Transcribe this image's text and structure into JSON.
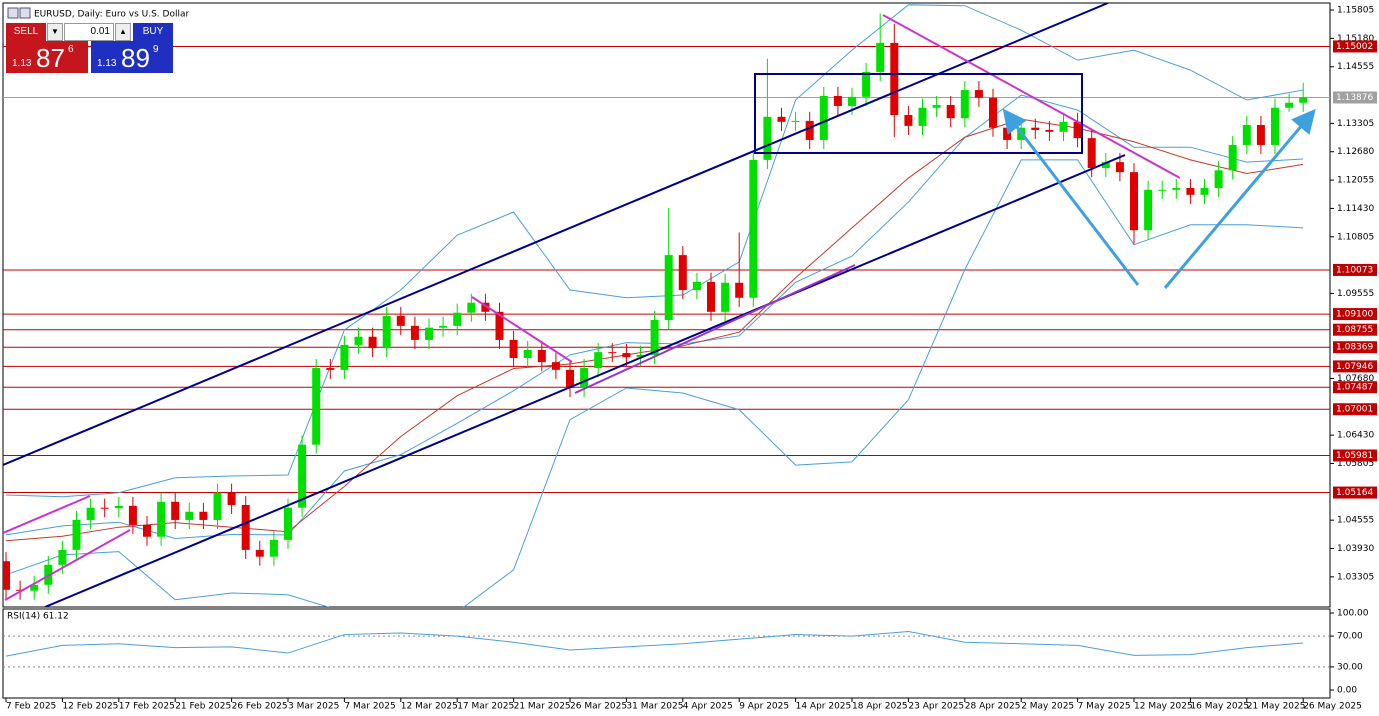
{
  "header": {
    "title": "EURUSD, Daily: Euro vs U.S. Dollar"
  },
  "trade_panel": {
    "sell": "SELL",
    "buy": "BUY",
    "lot": "0.01",
    "bid": {
      "big": "1.13",
      "main": "87",
      "small": "6"
    },
    "ask": {
      "big": "1.13",
      "main": "89",
      "small": "9"
    }
  },
  "chart_data": {
    "type": "candlestick",
    "up_color": "#00e000",
    "down_color": "#e00000",
    "categories": [
      "7 Feb 2025",
      null,
      null,
      null,
      "12 Feb 2025",
      null,
      null,
      null,
      "17 Feb 2025",
      null,
      null,
      null,
      "21 Feb 2025",
      null,
      null,
      null,
      "26 Feb 2025",
      null,
      null,
      null,
      "3 Mar 2025",
      null,
      null,
      null,
      "7 Mar 2025",
      null,
      null,
      null,
      "12 Mar 2025",
      null,
      null,
      null,
      "17 Mar 2025",
      null,
      null,
      null,
      "21 Mar 2025",
      null,
      null,
      null,
      "26 Mar 2025",
      null,
      null,
      null,
      "31 Mar 2025",
      null,
      null,
      null,
      "4 Apr 2025",
      null,
      null,
      null,
      "9 Apr 2025",
      null,
      null,
      null,
      "14 Apr 2025",
      null,
      null,
      null,
      "18 Apr 2025",
      null,
      null,
      null,
      "23 Apr 2025",
      null,
      null,
      null,
      "28 Apr 2025",
      null,
      null,
      null,
      "2 May 2025",
      null,
      null,
      null,
      "7 May 2025",
      null,
      null,
      null,
      "12 May 2025",
      null,
      null,
      null,
      "16 May 2025",
      null,
      null,
      null,
      "21 May 2025",
      null,
      null,
      null,
      "26 May 2025"
    ],
    "open": [
      1.0365,
      1.0302,
      1.03,
      1.0313,
      1.0357,
      1.039,
      1.0456,
      1.0483,
      1.0482,
      1.0487,
      1.0445,
      1.0419,
      1.0496,
      1.0456,
      1.0474,
      1.0456,
      1.0516,
      1.0489,
      1.039,
      1.0375,
      1.0412,
      1.0483,
      1.0622,
      1.0791,
      1.0787,
      1.0842,
      1.086,
      1.0835,
      1.0906,
      1.0884,
      1.0853,
      1.088,
      1.0884,
      1.0913,
      1.0935,
      1.0915,
      1.0853,
      1.0813,
      1.0831,
      1.0804,
      1.0787,
      1.0747,
      1.0791,
      1.0826,
      1.0824,
      1.0815,
      1.082,
      1.0897,
      1.104,
      1.0963,
      1.0981,
      1.0915,
      1.0979,
      1.0946,
      1.125,
      1.1345,
      1.1334,
      1.1336,
      1.1294,
      1.1391,
      1.1369,
      1.1389,
      1.1444,
      1.1508,
      1.1349,
      1.1325,
      1.1365,
      1.1371,
      1.1342,
      1.1404,
      1.1387,
      1.1321,
      1.1294,
      1.1321,
      1.1316,
      1.1312,
      1.1334,
      1.1298,
      1.1232,
      1.1245,
      1.1223,
      1.1095,
      1.1184,
      1.1184,
      1.1188,
      1.1173,
      1.1188,
      1.1227,
      1.1283,
      1.1327,
      1.1283,
      1.1365,
      1.1376
    ],
    "high": [
      1.0385,
      1.0322,
      1.0333,
      1.0377,
      1.041,
      1.0476,
      1.0503,
      1.0503,
      1.0507,
      1.0507,
      1.0465,
      1.0516,
      1.0516,
      1.0494,
      1.0494,
      1.0536,
      1.0536,
      1.0509,
      1.041,
      1.0432,
      1.0503,
      1.0642,
      1.0811,
      1.0811,
      1.0862,
      1.088,
      1.088,
      1.0926,
      1.0926,
      1.0904,
      1.09,
      1.0904,
      1.0933,
      1.0955,
      1.0955,
      1.0935,
      1.0873,
      1.0851,
      1.0851,
      1.0824,
      1.0807,
      1.0811,
      1.0846,
      1.0846,
      1.0844,
      1.084,
      1.0917,
      1.1144,
      1.106,
      1.1001,
      1.1001,
      1.0999,
      1.109,
      1.127,
      1.1473,
      1.1365,
      1.1356,
      1.1356,
      1.1411,
      1.1411,
      1.1409,
      1.1464,
      1.1573,
      1.155,
      1.1369,
      1.1385,
      1.1391,
      1.1391,
      1.1424,
      1.1424,
      1.1407,
      1.1341,
      1.1341,
      1.1341,
      1.1336,
      1.1354,
      1.1354,
      1.1318,
      1.1265,
      1.1265,
      1.1243,
      1.1204,
      1.1204,
      1.1208,
      1.1208,
      1.1208,
      1.1247,
      1.1303,
      1.1347,
      1.1347,
      1.1385,
      1.1396,
      1.142
    ],
    "low": [
      1.0282,
      1.028,
      1.028,
      1.0293,
      1.0337,
      1.037,
      1.0436,
      1.0462,
      1.0462,
      1.0425,
      1.0399,
      1.0399,
      1.0436,
      1.0436,
      1.0436,
      1.0436,
      1.0469,
      1.037,
      1.0355,
      1.0355,
      1.0392,
      1.0463,
      1.0602,
      1.0767,
      1.0767,
      1.0822,
      1.0815,
      1.0815,
      1.0864,
      1.0833,
      1.0833,
      1.086,
      1.0864,
      1.0893,
      1.0895,
      1.0833,
      1.0793,
      1.0793,
      1.0784,
      1.0767,
      1.0727,
      1.0727,
      1.0771,
      1.0804,
      1.0795,
      1.0795,
      1.08,
      1.0877,
      1.0943,
      1.0943,
      1.0895,
      1.0895,
      1.0926,
      1.0926,
      1.123,
      1.1314,
      1.1314,
      1.1274,
      1.1274,
      1.1349,
      1.1349,
      1.1369,
      1.1424,
      1.13,
      1.1305,
      1.1305,
      1.1345,
      1.1322,
      1.1322,
      1.1367,
      1.1301,
      1.1274,
      1.1274,
      1.1296,
      1.1292,
      1.1292,
      1.1278,
      1.1212,
      1.1212,
      1.1203,
      1.1065,
      1.1075,
      1.1164,
      1.1164,
      1.1153,
      1.1153,
      1.1168,
      1.1207,
      1.1263,
      1.1263,
      1.1263,
      1.1356,
      1.1356
    ],
    "close": [
      1.0302,
      1.03,
      1.0313,
      1.0357,
      1.039,
      1.0456,
      1.0483,
      1.0482,
      1.0487,
      1.0445,
      1.0419,
      1.0496,
      1.0456,
      1.0474,
      1.0456,
      1.0516,
      1.0489,
      1.039,
      1.0375,
      1.0412,
      1.0483,
      1.0622,
      1.0791,
      1.0787,
      1.0842,
      1.086,
      1.0835,
      1.0906,
      1.0884,
      1.0853,
      1.088,
      1.0884,
      1.0913,
      1.0935,
      1.0915,
      1.0853,
      1.0813,
      1.0831,
      1.0804,
      1.0787,
      1.0747,
      1.0791,
      1.0826,
      1.0824,
      1.0815,
      1.082,
      1.0897,
      1.104,
      1.0963,
      1.0981,
      1.0915,
      1.0979,
      1.0946,
      1.125,
      1.1345,
      1.1334,
      1.1336,
      1.1294,
      1.1391,
      1.1369,
      1.1389,
      1.1444,
      1.1508,
      1.1349,
      1.1325,
      1.1365,
      1.1371,
      1.1342,
      1.1404,
      1.1387,
      1.1321,
      1.1294,
      1.1321,
      1.1316,
      1.1312,
      1.1334,
      1.1298,
      1.1232,
      1.1245,
      1.1223,
      1.1095,
      1.1184,
      1.1184,
      1.1188,
      1.1173,
      1.1188,
      1.1227,
      1.1283,
      1.1327,
      1.1283,
      1.1365,
      1.1376,
      1.1388
    ],
    "ylim": [
      1.0264,
      1.1596
    ],
    "yticks": [
      1.15805,
      {
        "value": 1.1518,
        "label": "1.15180"
      },
      1.14555,
      1.13305,
      {
        "value": 1.1268,
        "label": "1.12680"
      },
      1.12055,
      {
        "value": 1.1143,
        "label": "1.11430"
      },
      1.10805,
      1.09555,
      {
        "value": 1.0768,
        "label": "1.07680"
      },
      {
        "value": 1.0643,
        "label": "1.06430"
      },
      1.05805,
      1.04555,
      {
        "value": 1.0393,
        "label": "1.03930"
      },
      1.03305
    ],
    "levels_color": "#c00000",
    "levels": [
      {
        "value": 1.15002,
        "label": "1.15002"
      },
      {
        "value": 1.10073,
        "label": "1.10073"
      },
      {
        "value": 1.091,
        "label": "1.09100"
      },
      {
        "value": 1.08755,
        "label": "1.08755"
      },
      {
        "value": 1.08369,
        "label": "1.08369"
      },
      {
        "value": 1.07946,
        "label": "1.07946"
      },
      {
        "value": 1.07487,
        "label": "1.07487"
      },
      {
        "value": 1.07001,
        "label": "1.07001"
      },
      {
        "value": 1.05981,
        "label": "1.05981"
      },
      {
        "value": 1.05164,
        "label": "1.05164"
      }
    ],
    "current_price": {
      "value": 1.13876,
      "label": "1.13876",
      "color": "#a0a0a0"
    },
    "overlays": {
      "x": [
        0,
        4,
        8,
        12,
        16,
        20,
        24,
        28,
        32,
        36,
        40,
        44,
        48,
        52,
        56,
        60,
        64,
        68,
        72,
        76,
        80,
        84,
        88,
        92
      ],
      "series": [
        {
          "color": "#4a9fd8",
          "values": [
            1.0511,
            1.0507,
            1.0516,
            1.0549,
            1.0553,
            1.0555,
            1.0875,
            1.0963,
            1.1084,
            1.1135,
            1.0963,
            1.0946,
            1.0952,
            1.1025,
            1.1382,
            1.1492,
            1.1592,
            1.159,
            1.1536,
            1.147,
            1.1492,
            1.1448,
            1.1382,
            1.1404
          ]
        },
        {
          "color": "#4a9fd8",
          "values": [
            1.0423,
            1.0443,
            1.0451,
            1.0415,
            1.0424,
            1.0423,
            1.0564,
            1.06,
            1.0669,
            1.0741,
            1.082,
            1.0847,
            1.0844,
            1.0862,
            1.098,
            1.1038,
            1.1157,
            1.1299,
            1.1393,
            1.136,
            1.1278,
            1.1278,
            1.1245,
            1.1252
          ]
        },
        {
          "color": "#4a9fd8",
          "values": [
            1.0335,
            1.0379,
            1.0386,
            1.028,
            1.0295,
            1.0291,
            1.0253,
            1.0236,
            1.0253,
            1.0346,
            1.0677,
            1.0747,
            1.0736,
            1.0699,
            1.0577,
            1.0584,
            1.0721,
            1.1008,
            1.125,
            1.125,
            1.1063,
            1.1107,
            1.1107,
            1.11
          ]
        },
        {
          "color": "#c0392b",
          "values": [
            1.041,
            1.042,
            1.044,
            1.045,
            1.044,
            1.043,
            1.053,
            1.064,
            1.073,
            1.079,
            1.08,
            1.082,
            1.084,
            1.087,
            1.099,
            1.11,
            1.121,
            1.13,
            1.134,
            1.132,
            1.129,
            1.125,
            1.122,
            1.124
          ]
        }
      ]
    },
    "indicator": {
      "label": "RSI(14) 61.12",
      "color": "#4a9fd8",
      "ylim": [
        -10.4,
        105.2
      ],
      "yticks": [
        {
          "value": 100,
          "label": "100.00"
        },
        {
          "value": 70,
          "label": "70.00"
        },
        {
          "value": 30,
          "label": "30.00"
        },
        {
          "value": 0,
          "label": "0.00"
        }
      ],
      "levels": [
        70,
        30
      ],
      "x": [
        0,
        4,
        8,
        12,
        16,
        20,
        24,
        28,
        32,
        36,
        40,
        44,
        48,
        52,
        56,
        60,
        64,
        68,
        72,
        76,
        80,
        84,
        88,
        92
      ],
      "values": [
        44,
        58,
        60,
        55,
        56,
        48,
        72,
        74,
        70,
        62,
        52,
        56,
        60,
        66,
        72,
        70,
        76,
        62,
        60,
        58,
        45,
        46,
        55,
        61
      ]
    }
  }
}
